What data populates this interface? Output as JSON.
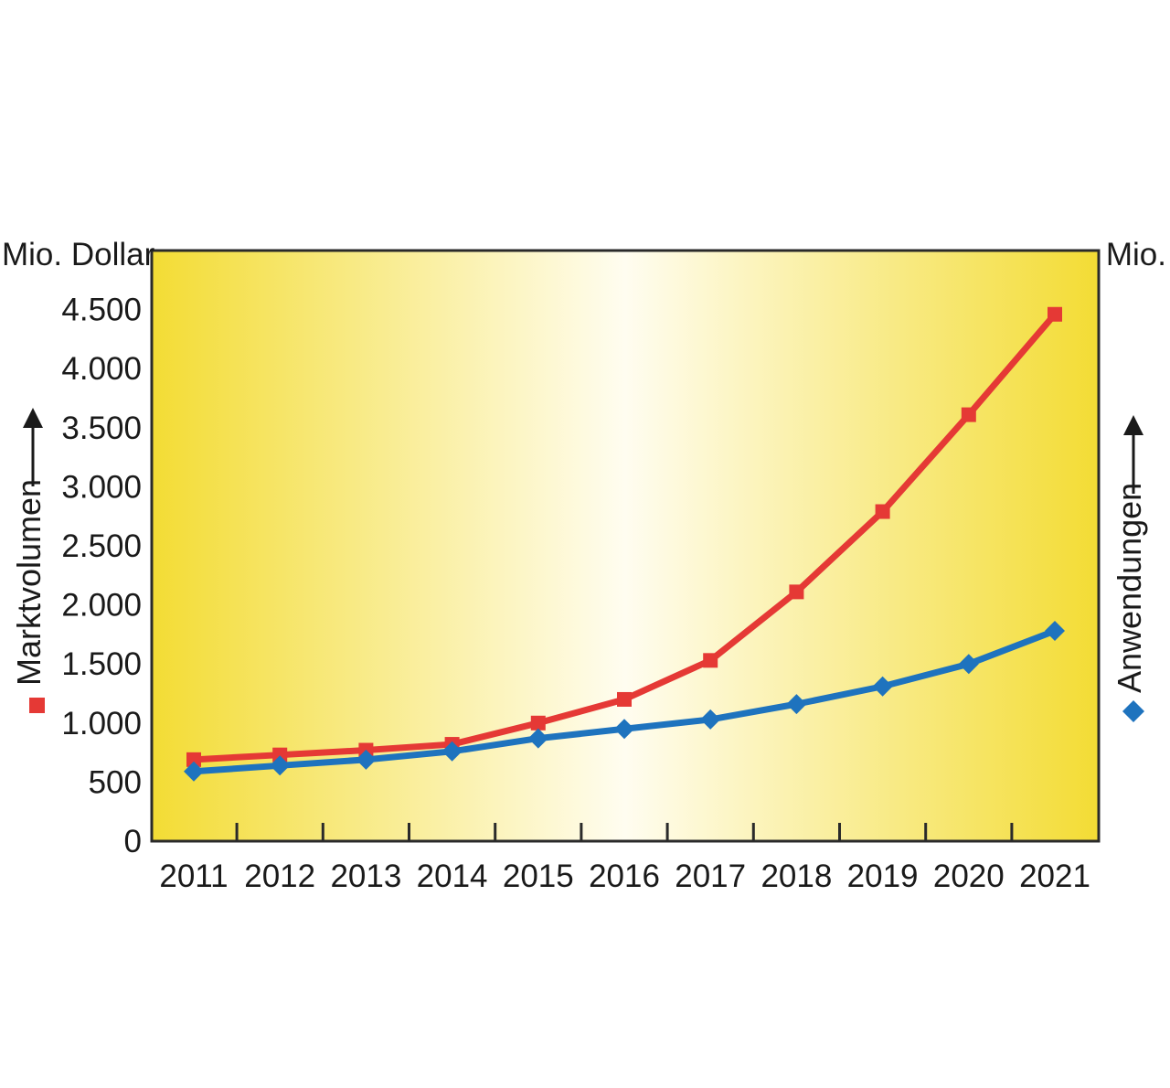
{
  "chart_data": {
    "type": "line",
    "x": [
      "2011",
      "2012",
      "2013",
      "2014",
      "2015",
      "2016",
      "2017",
      "2018",
      "2019",
      "2020",
      "2021"
    ],
    "y_left": {
      "unit": "Mio. Dollar",
      "label": "Marktvolumen",
      "range": [
        0,
        5000
      ],
      "ticks": [
        0,
        500,
        1000,
        1500,
        2000,
        2500,
        3000,
        3500,
        4000,
        4500
      ],
      "tick_labels": [
        "0",
        "500",
        "1.000",
        "1.500",
        "2.000",
        "2.500",
        "3.000",
        "3.500",
        "4.000",
        "4.500"
      ]
    },
    "y_right": {
      "unit": "Mio.",
      "label": "Anwendungen"
    },
    "series": [
      {
        "name": "Marktvolumen",
        "axis": "left",
        "color": "#e53935",
        "marker": "square",
        "values": [
          690,
          730,
          770,
          820,
          1000,
          1200,
          1530,
          2110,
          2790,
          3610,
          4460
        ]
      },
      {
        "name": "Anwendungen",
        "axis": "right",
        "color": "#1e73be",
        "marker": "diamond",
        "values": [
          590,
          640,
          690,
          760,
          870,
          950,
          1030,
          1160,
          1310,
          1500,
          1780
        ]
      }
    ],
    "grid": false,
    "background": {
      "edge": "#f3dc34",
      "center": "#fffdf0"
    }
  }
}
